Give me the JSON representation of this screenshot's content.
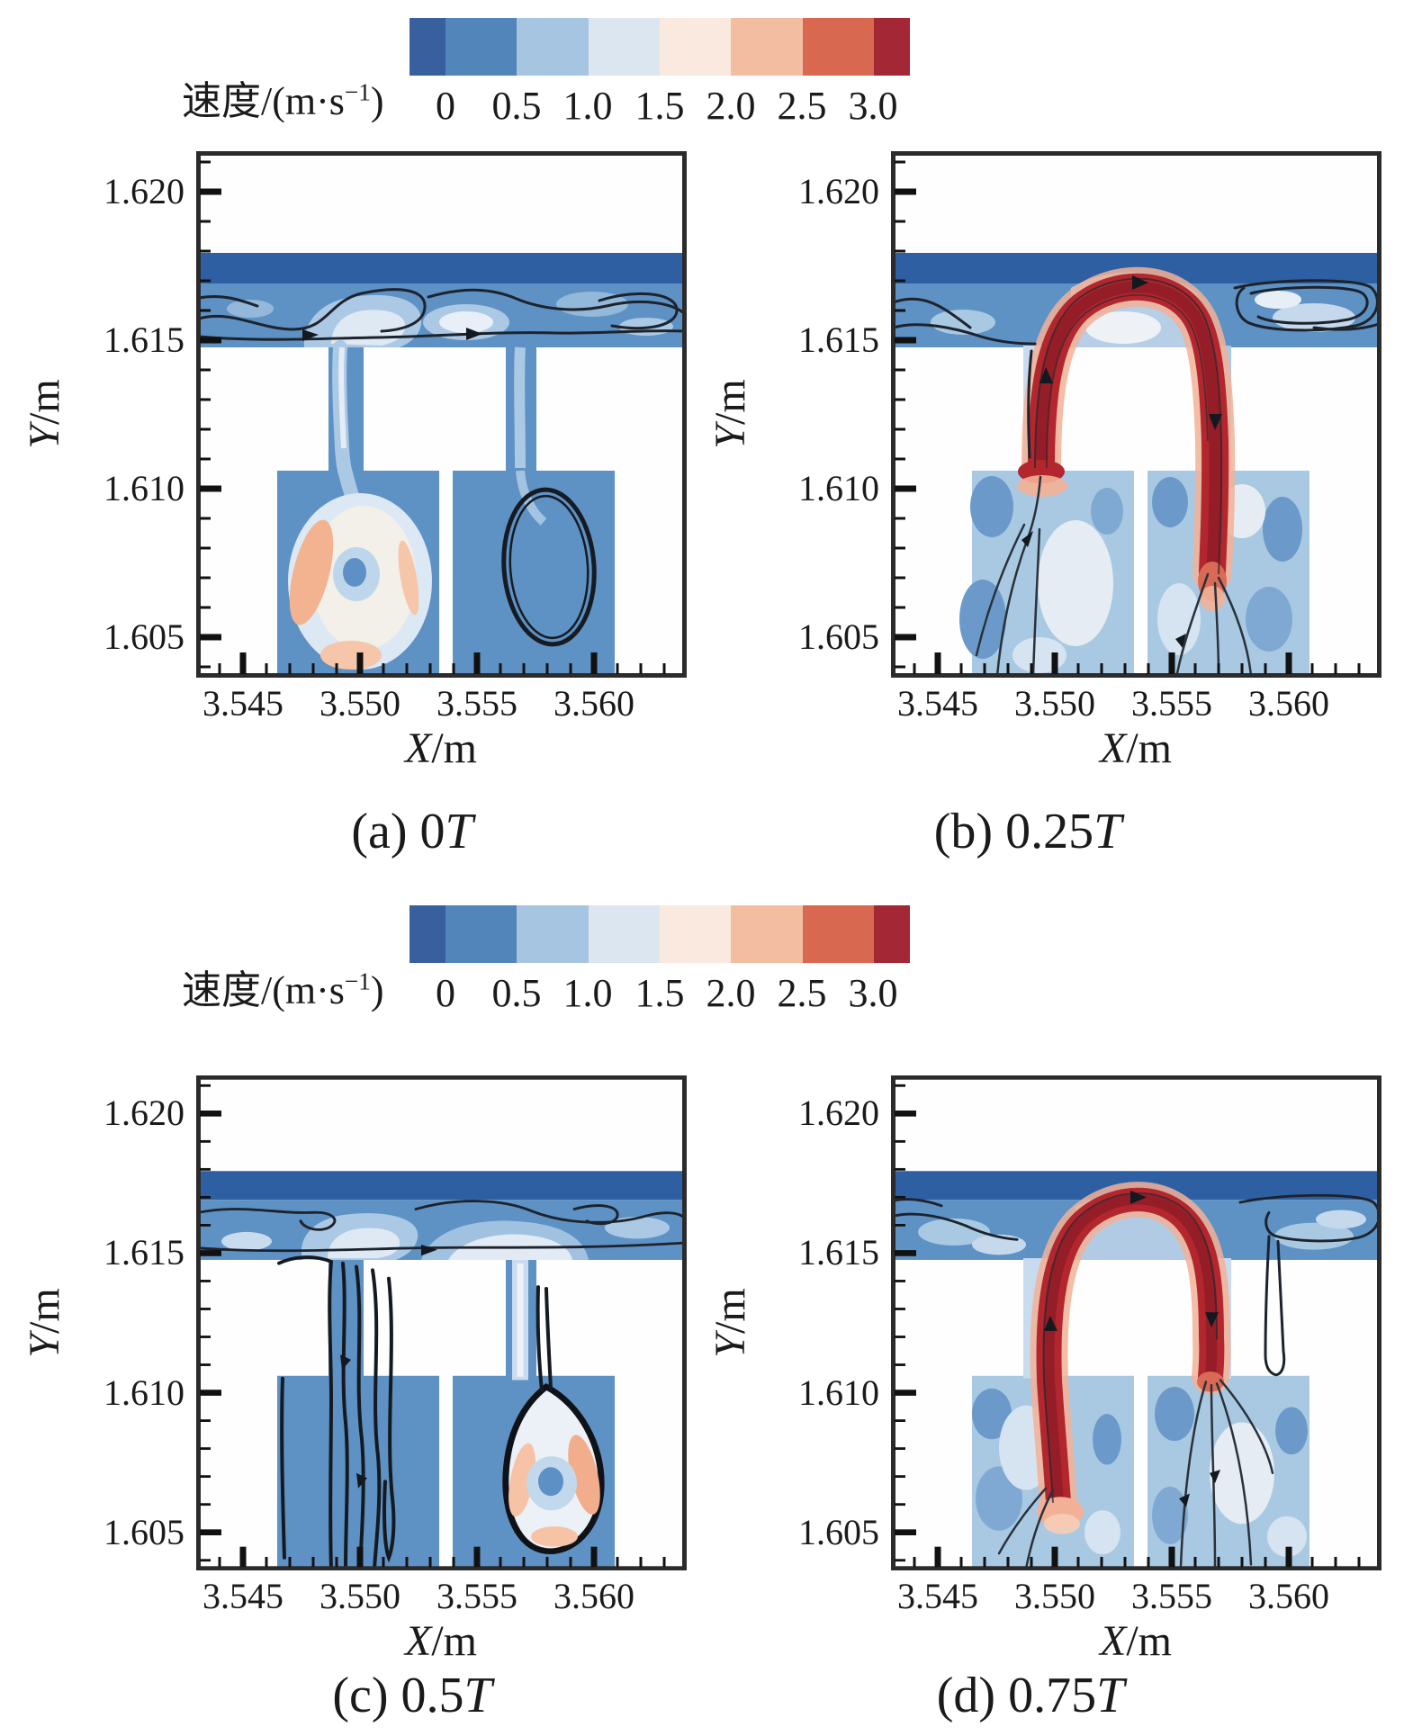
{
  "colorbar": {
    "label_prefix": "速度/(m·s",
    "label_sup": "−1",
    "label_suffix": ")",
    "tick_labels": [
      "0",
      "0.5",
      "1.0",
      "1.5",
      "2.0",
      "2.5",
      "3.0"
    ],
    "colors": [
      "#38609f",
      "#5286bb",
      "#a6c5e1",
      "#dce6f1",
      "#f9e9de",
      "#f3bda1",
      "#d8684f",
      "#a32734"
    ]
  },
  "axes": {
    "x_var": "X",
    "x_unit": "/m",
    "y_var": "Y",
    "y_unit": "/m",
    "x_ticks": [
      "3.545",
      "3.550",
      "3.555",
      "3.560"
    ],
    "y_ticks": [
      "1.620",
      "1.615",
      "1.610",
      "1.605"
    ]
  },
  "panels": [
    {
      "caption_label": "(a)",
      "time_value": "0",
      "time_unit": "T"
    },
    {
      "caption_label": "(b)",
      "time_value": "0.25",
      "time_unit": "T"
    },
    {
      "caption_label": "(c)",
      "time_value": "0.5",
      "time_unit": "T"
    },
    {
      "caption_label": "(d)",
      "time_value": "0.75",
      "time_unit": "T"
    }
  ],
  "flow_colors": {
    "free_stream_band": "#2e5fa3",
    "bulk_flow": "#5e91c4",
    "low_speed_region": "#a9c9e3",
    "stagnant_region": "#dce8f4",
    "reverse_flow": "#f3b391",
    "jet_core": "#b3262e",
    "streamline": "#1d232c"
  },
  "chart_data": {
    "type": "heatmap",
    "subtype": "velocity-contour-with-streamlines",
    "title": "速度/(m·s⁻¹)",
    "colorbar_levels": [
      0,
      0.5,
      1.0,
      1.5,
      2.0,
      2.5,
      3.0
    ],
    "colorbar_colors": [
      "#38609f",
      "#5286bb",
      "#a6c5e1",
      "#dce6f1",
      "#f9e9de",
      "#f3bda1",
      "#d8684f",
      "#a32734"
    ],
    "xlabel": "X/m",
    "ylabel": "Y/m",
    "x_ticks": [
      3.545,
      3.55,
      3.555,
      3.56
    ],
    "y_ticks": [
      1.605,
      1.61,
      1.615,
      1.62
    ],
    "xlim": [
      3.543,
      3.5635
    ],
    "ylim": [
      1.6045,
      1.621
    ],
    "grid": false,
    "legend_position": "top-colorbar",
    "panels": [
      {
        "caption": "(a) 0T",
        "phase": "0T",
        "description": "Low-speed field (~0.5 m/s). Plume descends both slots; left chamber holds a vortex with ~2 m/s salmon ring and ~0.5 m/s blue core near (3.550, 1.606); closed black recirculation loop in right chamber near (3.557, 1.6065); tangled streamlines along the top channel at y≈1.615-1.617."
      },
      {
        "caption": "(b) 0.25T",
        "phase": "0.25T",
        "description": "High-speed (~3 m/s) red arched jet rises from the left chamber top through the left slot, arcs over the baffle at y≈1.616 and plunges down the right slot deep into the right chamber (to y≈1.607); chambers mostly light ~0.5-1 m/s; streamline tangle at top right."
      },
      {
        "caption": "(c) 0.5T",
        "phase": "0.5T",
        "description": "Low-speed field. Bundle of vertical recirculating streamlines fills the left slot and left chamber; teardrop vortex outlined by a thick streamline in the right chamber near (3.557, 1.6065) with ~2 m/s salmon ring and blue core; wavy contours along top channel."
      },
      {
        "caption": "(d) 0.75T",
        "phase": "0.75T",
        "description": "High-speed (~3 m/s) red arched jet rises from deep inside the left chamber (y≈1.6055) through the left slot, arcs over at y≈1.616 and descends the right slot to the right chamber top; streamlines fan into the right chamber; large dark streamline loop at top right."
      }
    ]
  }
}
